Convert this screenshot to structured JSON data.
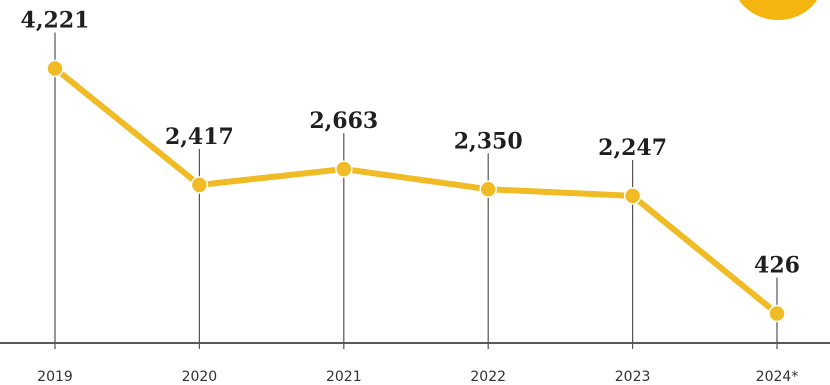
{
  "colors": {
    "line": "#f0bb24",
    "marker": "#f0bb24",
    "accent": "#f5b511",
    "stem": "#555555",
    "axis": "#222222"
  },
  "chart_data": {
    "type": "line",
    "categories": [
      "2019",
      "2020",
      "2021",
      "2022",
      "2023",
      "2024*"
    ],
    "series": [
      {
        "values": [
          4221,
          2417,
          2663,
          2350,
          2247,
          426
        ]
      }
    ],
    "data_labels": [
      "4,221",
      "2,417",
      "2,663",
      "2,350",
      "2,247",
      "426"
    ],
    "ylim": [
      0,
      4600
    ],
    "grid": false,
    "legend": "none"
  }
}
